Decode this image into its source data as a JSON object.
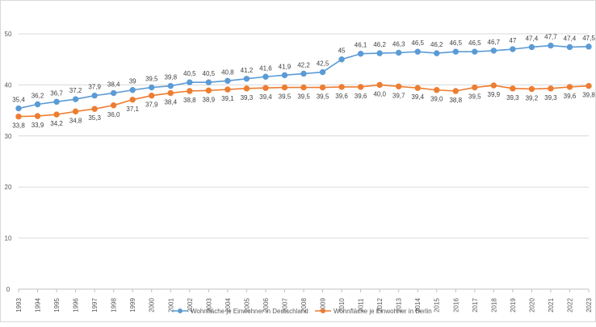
{
  "chart_data": {
    "type": "line",
    "x": [
      "1993",
      "1994",
      "1995",
      "1996",
      "1997",
      "1998",
      "1999",
      "2000",
      "2001",
      "2002",
      "2003",
      "2004",
      "2005",
      "2006",
      "2007",
      "2008",
      "2009",
      "2010",
      "2011",
      "2012",
      "2013",
      "2014",
      "2015",
      "2016",
      "2017",
      "2018",
      "2019",
      "2020",
      "2021",
      "2022",
      "2023"
    ],
    "ylim": [
      0,
      50
    ],
    "yticks": [
      0,
      10,
      20,
      30,
      40,
      50
    ],
    "grid": true,
    "legend_position": "bottom",
    "series": [
      {
        "name": "Wohnfläche je Einwohner  in Deutschland",
        "color": "#5B9BD5",
        "values": [
          35.4,
          36.2,
          36.7,
          37.2,
          37.9,
          38.4,
          39,
          39.5,
          39.8,
          40.5,
          40.5,
          40.8,
          41.2,
          41.6,
          41.9,
          42.2,
          42.5,
          45,
          46.1,
          46.2,
          46.3,
          46.5,
          46.2,
          46.5,
          46.5,
          46.7,
          47,
          47.4,
          47.7,
          47.4,
          47.5
        ],
        "labels": [
          "35,4",
          "36,2",
          "36,7",
          "37,2",
          "37,9",
          "38,4",
          "39",
          "39,5",
          "39,8",
          "40,5",
          "40,5",
          "40,8",
          "41,2",
          "41,6",
          "41,9",
          "42,2",
          "42,5",
          "45",
          "46,1",
          "46,2",
          "46,3",
          "46,5",
          "46,2",
          "46,5",
          "46,5",
          "46,7",
          "47",
          "47,4",
          "47,7",
          "47,4",
          "47,5"
        ]
      },
      {
        "name": "Wohnfläche je Einwohner  in Berlin",
        "color": "#ED7D31",
        "values": [
          33.8,
          33.9,
          34.2,
          34.8,
          35.3,
          36.0,
          37.1,
          37.9,
          38.4,
          38.8,
          38.9,
          39.1,
          39.3,
          39.4,
          39.5,
          39.5,
          39.5,
          39.6,
          39.6,
          40.0,
          39.7,
          39.4,
          39.0,
          38.8,
          39.5,
          39.9,
          39.3,
          39.2,
          39.3,
          39.6,
          39.8
        ],
        "labels": [
          "33,8",
          "33,9",
          "34,2",
          "34,8",
          "35,3",
          "36,0",
          "37,1",
          "37,9",
          "38,4",
          "38,8",
          "38,9",
          "39,1",
          "39,3",
          "39,4",
          "39,5",
          "39,5",
          "39,5",
          "39,6",
          "39,6",
          "40,0",
          "39,7",
          "39,4",
          "39,0",
          "38,8",
          "39,5",
          "39,9",
          "39,3",
          "39,2",
          "39,3",
          "39,6",
          "39,8"
        ]
      }
    ]
  }
}
